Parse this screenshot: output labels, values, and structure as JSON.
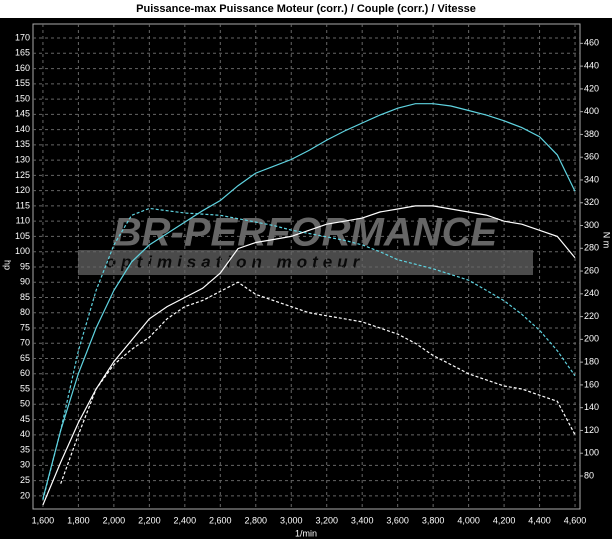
{
  "chart_data": {
    "type": "line",
    "title": "Puissance-max Puissance Moteur (corr.) / Couple (corr.) / Vitesse",
    "xlabel": "1/min",
    "ylabel": "hp",
    "y2label": "N m",
    "watermark": [
      "BR-PERFORMANCE",
      "optimisation moteur"
    ],
    "x": [
      1600,
      1700,
      1800,
      1900,
      2000,
      2100,
      2200,
      2300,
      2400,
      2500,
      2600,
      2700,
      2800,
      2900,
      3000,
      3100,
      3200,
      3300,
      3400,
      3500,
      3600,
      3700,
      3800,
      3900,
      4000,
      4100,
      4200,
      4300,
      4400,
      4500,
      4600
    ],
    "series": [
      {
        "color": "#ffffff",
        "dash": false,
        "values": [
          17,
          31,
          44,
          55,
          64,
          71,
          78,
          82,
          85,
          88,
          93,
          101,
          103,
          104,
          105,
          107,
          109,
          110,
          111,
          113,
          114,
          115,
          115,
          114,
          113,
          112,
          110,
          109,
          107,
          105,
          98
        ]
      },
      {
        "color": "#ffffff",
        "dash": true,
        "values": [
          null,
          24,
          40,
          55,
          63,
          68,
          72,
          78,
          82,
          84,
          87,
          90,
          86,
          84,
          82,
          80,
          79,
          78,
          77,
          75,
          73,
          70,
          66,
          63,
          60,
          58,
          56,
          55,
          53,
          51,
          40
        ]
      },
      {
        "color": "#5fd3e0",
        "dash": false,
        "axis": "y2",
        "values": [
          60,
          120,
          170,
          210,
          243,
          268,
          283,
          293,
          303,
          313,
          322,
          335,
          346,
          352,
          358,
          366,
          375,
          383,
          390,
          397,
          403,
          407,
          407,
          405,
          401,
          397,
          392,
          386,
          378,
          362,
          330
        ]
      },
      {
        "color": "#5fd3e0",
        "dash": true,
        "axis": "y2",
        "values": [
          59,
          120,
          190,
          243,
          283,
          309,
          315,
          313,
          311,
          310,
          309,
          306,
          303,
          300,
          296,
          293,
          290,
          287,
          283,
          277,
          270,
          266,
          262,
          257,
          252,
          243,
          234,
          222,
          208,
          190,
          168
        ]
      }
    ],
    "xlim": [
      1544,
      4628
    ],
    "xticks": [
      {
        "value": 1600,
        "label": "1,600"
      },
      {
        "value": 1800,
        "label": "1,800"
      },
      {
        "value": 2000,
        "label": "2,000"
      },
      {
        "value": 2200,
        "label": "2,200"
      },
      {
        "value": 2400,
        "label": "2,400"
      },
      {
        "value": 2600,
        "label": "2,600"
      },
      {
        "value": 2800,
        "label": "2,800"
      },
      {
        "value": 3000,
        "label": "3,000"
      },
      {
        "value": 3200,
        "label": "3,200"
      },
      {
        "value": 3400,
        "label": "3,400"
      },
      {
        "value": 3600,
        "label": "3,600"
      },
      {
        "value": 3800,
        "label": "3,800"
      },
      {
        "value": 4000,
        "label": "4,000"
      },
      {
        "value": 4200,
        "label": "4,200"
      },
      {
        "value": 4400,
        "label": "4,400"
      },
      {
        "value": 4600,
        "label": "4,600"
      }
    ],
    "ylim": [
      15.7,
      174.6
    ],
    "yticks": [
      20,
      25,
      30,
      35,
      40,
      45,
      50,
      55,
      60,
      65,
      70,
      75,
      80,
      85,
      90,
      95,
      100,
      105,
      110,
      115,
      120,
      125,
      130,
      135,
      140,
      145,
      150,
      155,
      160,
      165,
      170
    ],
    "y2lim": [
      51,
      477
    ],
    "y2ticks": [
      80,
      100,
      120,
      140,
      160,
      180,
      200,
      220,
      240,
      260,
      280,
      300,
      320,
      340,
      360,
      380,
      400,
      420,
      440,
      460
    ],
    "grid": true
  }
}
